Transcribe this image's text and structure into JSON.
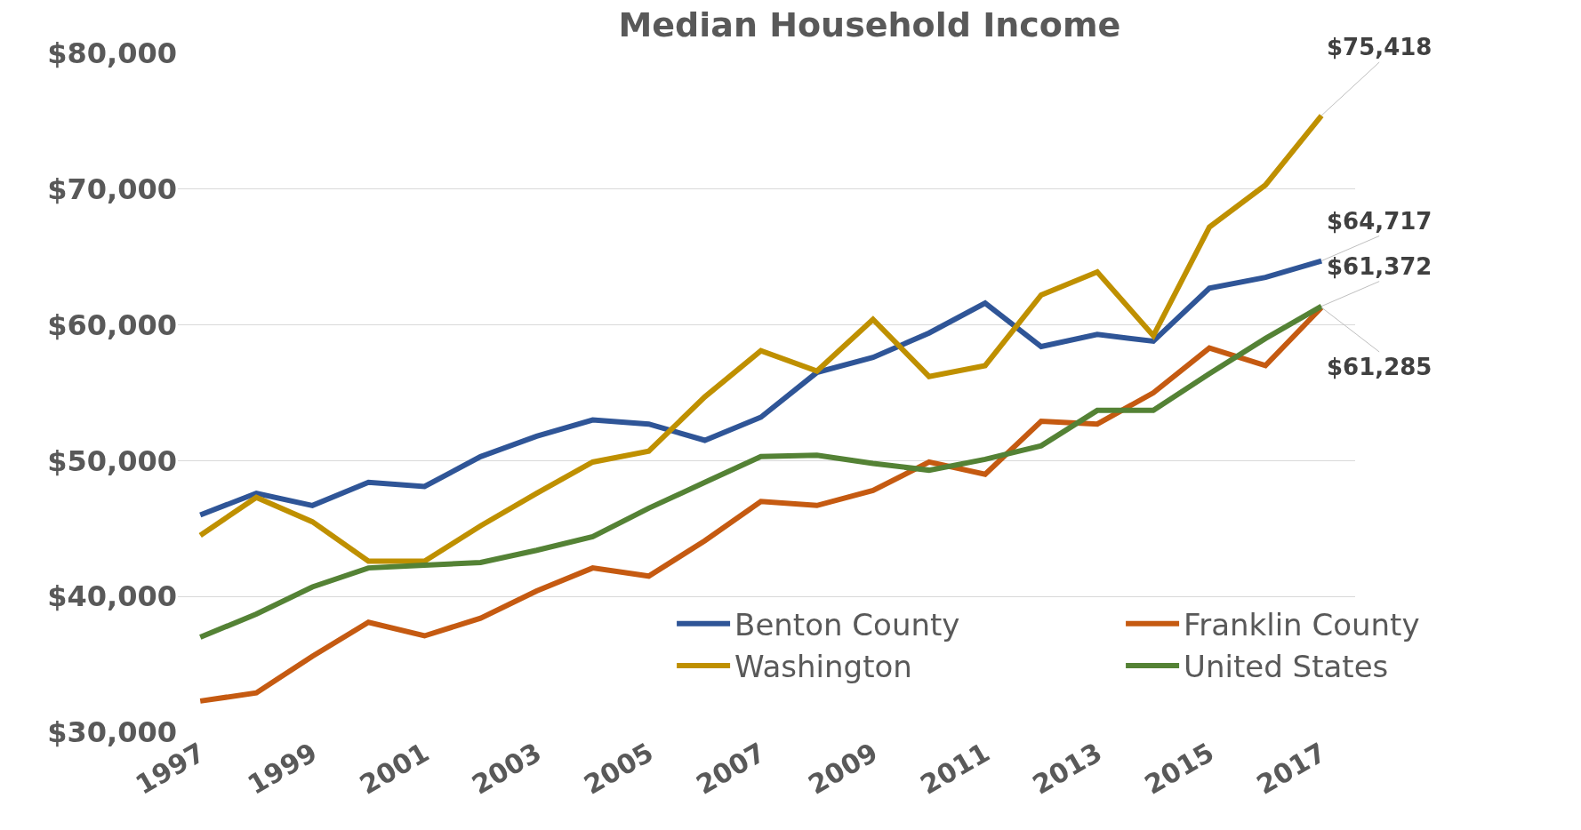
{
  "chart_data": {
    "type": "line",
    "title": "Median Household Income",
    "x": [
      1997,
      1998,
      1999,
      2000,
      2001,
      2002,
      2003,
      2004,
      2005,
      2006,
      2007,
      2008,
      2009,
      2010,
      2011,
      2012,
      2013,
      2014,
      2015,
      2016,
      2017
    ],
    "series": [
      {
        "name": "Benton County",
        "color": "#2f5597",
        "values": [
          46000,
          47600,
          46700,
          48400,
          48100,
          50300,
          51800,
          53000,
          52700,
          51500,
          53200,
          56500,
          57600,
          59400,
          61600,
          58400,
          59300,
          58800,
          62700,
          63500,
          64717
        ],
        "value_labels": [
          null,
          null,
          null,
          null,
          null,
          null,
          null,
          null,
          null,
          null,
          null,
          null,
          null,
          null,
          null,
          null,
          null,
          null,
          null,
          null,
          "$64,717"
        ]
      },
      {
        "name": "Franklin County",
        "color": "#c55a11",
        "values": [
          32300,
          32900,
          35600,
          38100,
          37100,
          38400,
          40400,
          42100,
          41500,
          44100,
          47000,
          46700,
          47800,
          49900,
          49000,
          52900,
          52700,
          55000,
          58300,
          57000,
          61285
        ],
        "value_labels": [
          null,
          null,
          null,
          null,
          null,
          null,
          null,
          null,
          null,
          null,
          null,
          null,
          null,
          null,
          null,
          null,
          null,
          null,
          null,
          null,
          "$61,285"
        ]
      },
      {
        "name": "Washington",
        "color": "#bf9000",
        "values": [
          44500,
          47300,
          45500,
          42600,
          42600,
          45200,
          47600,
          49900,
          50700,
          54700,
          58100,
          56600,
          60400,
          56200,
          57000,
          62200,
          63900,
          59200,
          67200,
          70300,
          75418
        ],
        "value_labels": [
          null,
          null,
          null,
          null,
          null,
          null,
          null,
          null,
          null,
          null,
          null,
          null,
          null,
          null,
          null,
          null,
          null,
          null,
          null,
          null,
          "$75,418"
        ]
      },
      {
        "name": "United States",
        "color": "#548235",
        "values": [
          37000,
          38700,
          40700,
          42100,
          42300,
          42500,
          43400,
          44400,
          46500,
          48400,
          50300,
          50400,
          49800,
          49300,
          50100,
          51100,
          53700,
          53700,
          56400,
          59000,
          61372
        ],
        "value_labels": [
          null,
          null,
          null,
          null,
          null,
          null,
          null,
          null,
          null,
          null,
          null,
          null,
          null,
          null,
          null,
          null,
          null,
          null,
          null,
          null,
          "$61,372"
        ]
      }
    ],
    "xlim": [
      1996.6,
      2017.6
    ],
    "xticks": [
      1997,
      1999,
      2001,
      2003,
      2005,
      2007,
      2009,
      2011,
      2013,
      2015,
      2017
    ],
    "ylim": [
      30000,
      80000
    ],
    "yticks": [
      {
        "value": 30000,
        "label": "$30,000"
      },
      {
        "value": 40000,
        "label": "$40,000"
      },
      {
        "value": 50000,
        "label": "$50,000"
      },
      {
        "value": 60000,
        "label": "$60,000"
      },
      {
        "value": 70000,
        "label": "$70,000"
      },
      {
        "value": 80000,
        "label": "$80,000"
      }
    ],
    "grid": "y",
    "legend": "bottom right",
    "marker": "none",
    "line_style": "solid"
  }
}
